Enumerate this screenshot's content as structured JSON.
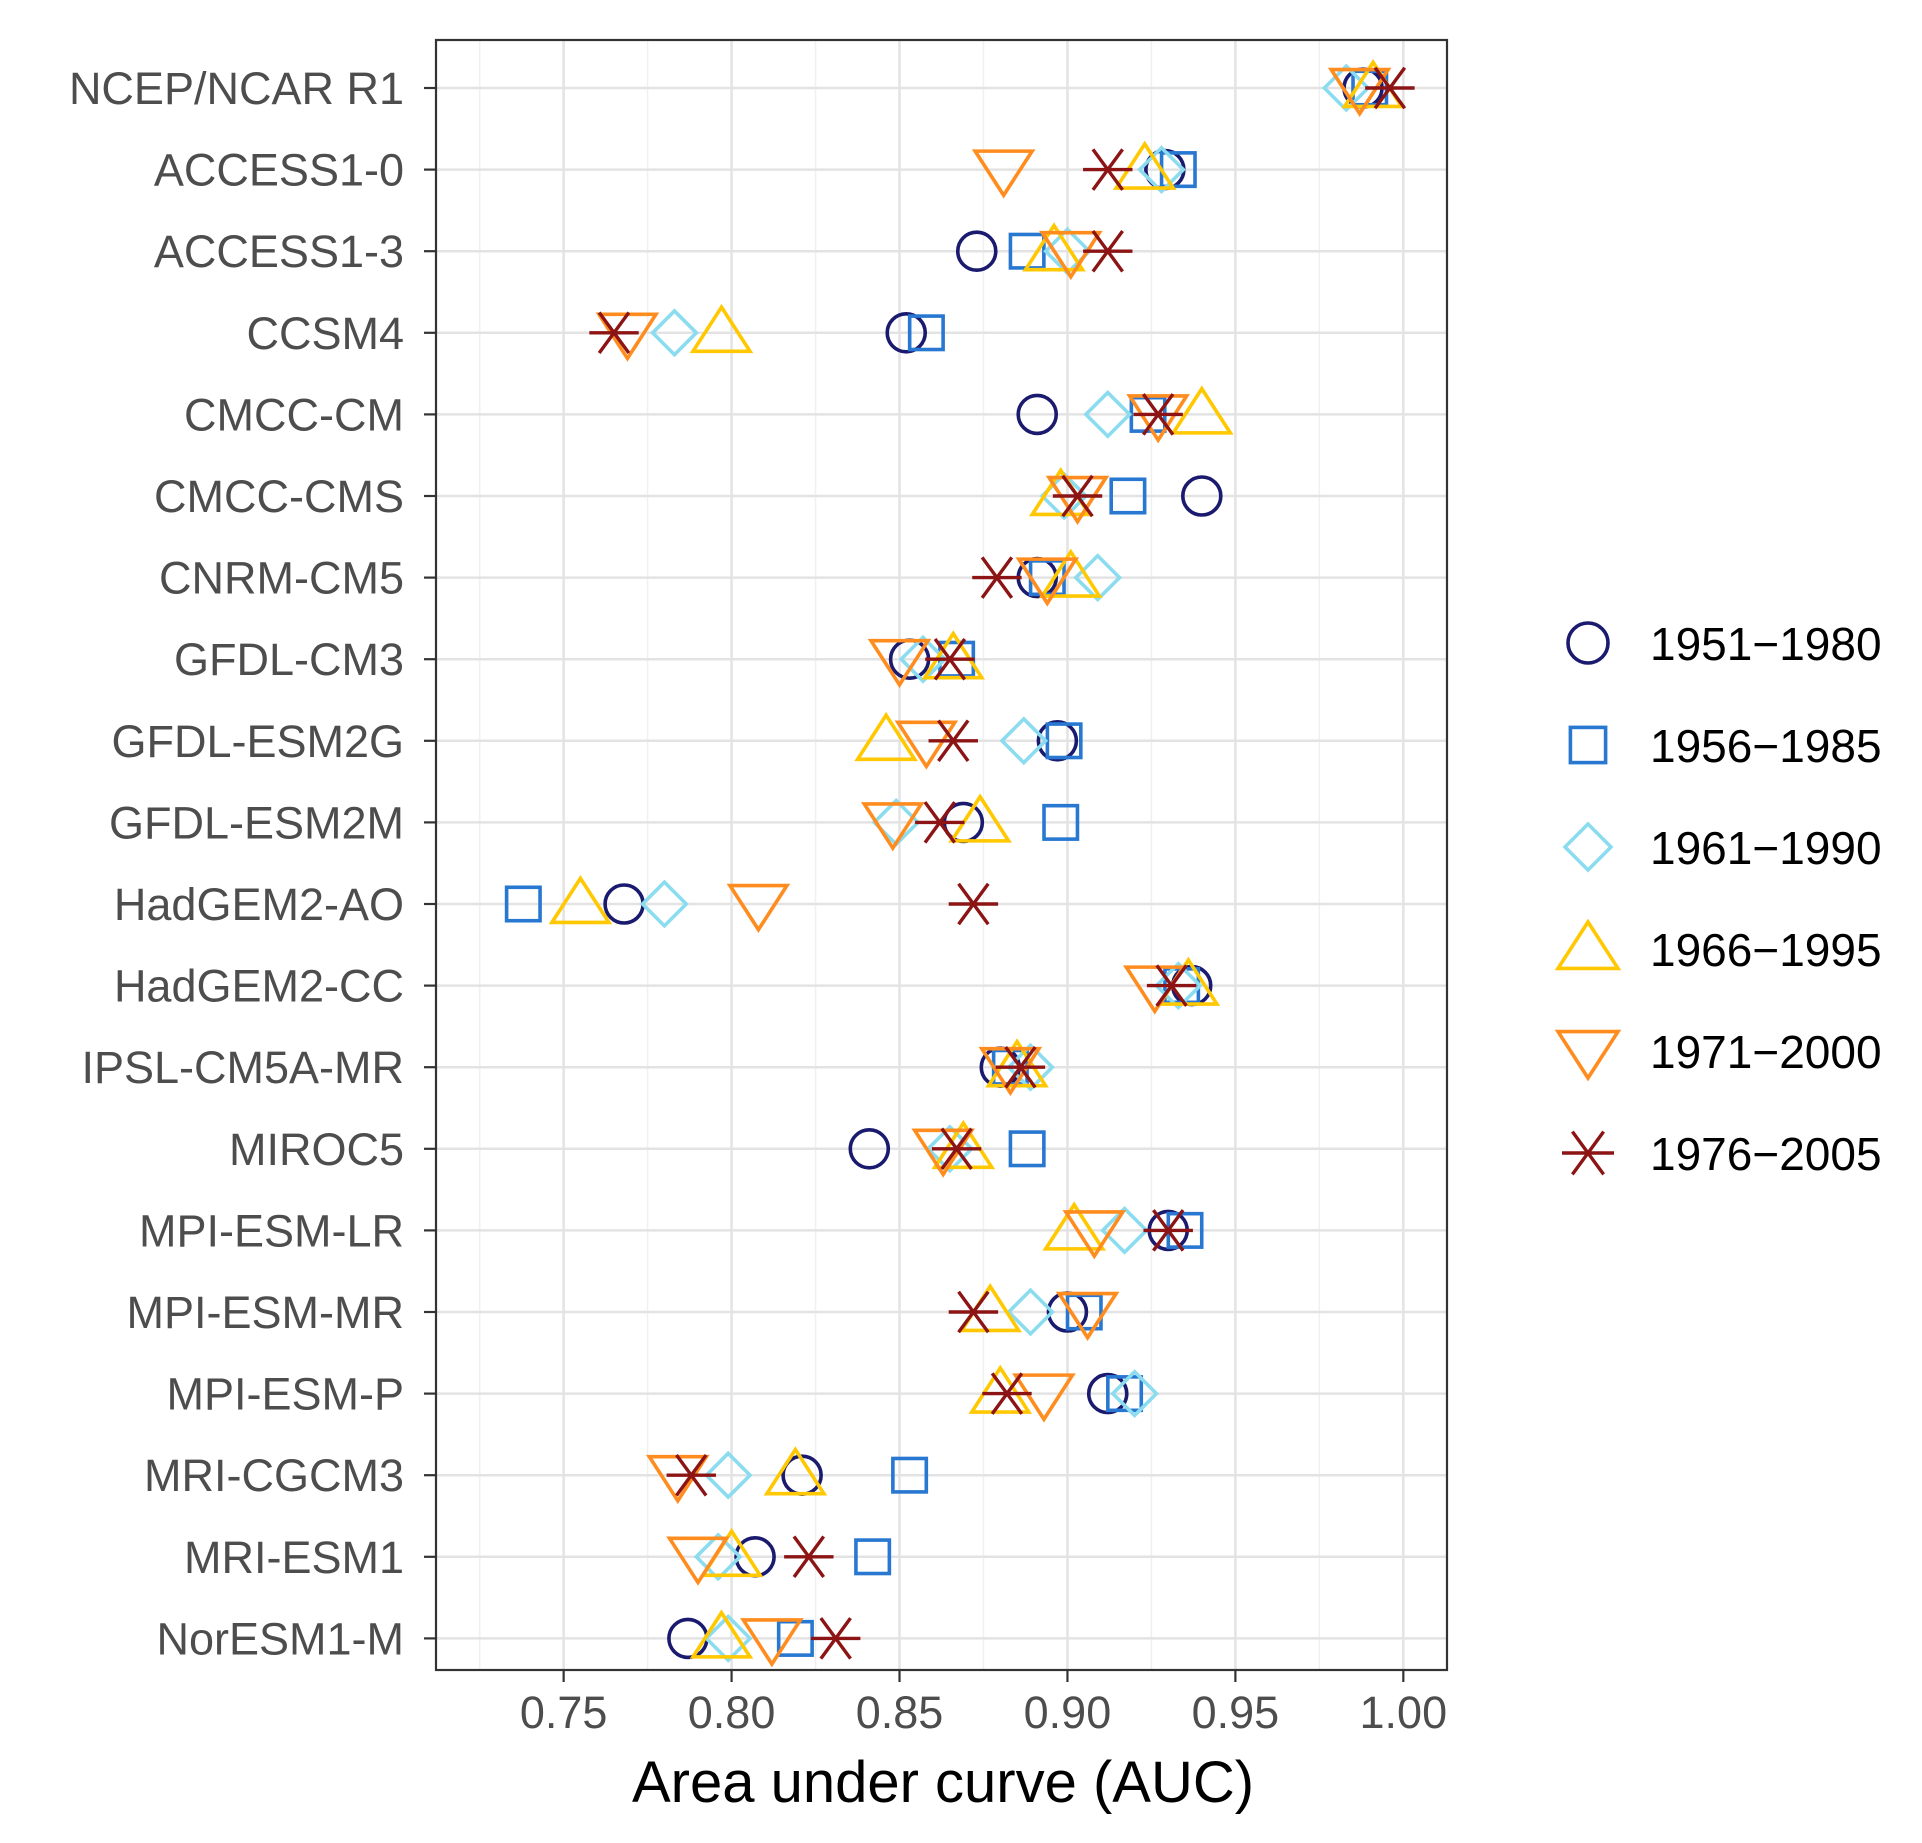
{
  "chart_data": {
    "type": "scatter",
    "title": "",
    "xlabel": "Area under curve (AUC)",
    "ylabel": "",
    "xlim": [
      0.712,
      1.013
    ],
    "x_ticks": [
      0.75,
      0.8,
      0.85,
      0.9,
      0.95,
      1.0
    ],
    "x_tick_labels": [
      "0.75",
      "0.80",
      "0.85",
      "0.90",
      "0.95",
      "1.00"
    ],
    "grid": true,
    "legend_position": "right",
    "categories": [
      "NCEP/NCAR R1",
      "ACCESS1-0",
      "ACCESS1-3",
      "CCSM4",
      "CMCC-CM",
      "CMCC-CMS",
      "CNRM-CM5",
      "GFDL-CM3",
      "GFDL-ESM2G",
      "GFDL-ESM2M",
      "HadGEM2-AO",
      "HadGEM2-CC",
      "IPSL-CM5A-MR",
      "MIROC5",
      "MPI-ESM-LR",
      "MPI-ESM-MR",
      "MPI-ESM-P",
      "MRI-CGCM3",
      "MRI-ESM1",
      "NorESM1-M"
    ],
    "series": [
      {
        "name": "1951−1980",
        "shape": "circle",
        "color": "#1a1a6e",
        "values": [
          0.988,
          0.929,
          0.873,
          0.852,
          0.891,
          0.94,
          0.891,
          0.853,
          0.897,
          0.869,
          0.768,
          0.937,
          0.88,
          0.841,
          0.93,
          0.9,
          0.912,
          0.821,
          0.807,
          0.787
        ]
      },
      {
        "name": "1956−1985",
        "shape": "square",
        "color": "#2878d2",
        "values": [
          0.99,
          0.933,
          0.888,
          0.858,
          0.924,
          0.918,
          0.894,
          0.867,
          0.899,
          0.898,
          0.738,
          0.934,
          0.883,
          0.888,
          0.935,
          0.905,
          0.917,
          0.853,
          0.842,
          0.819
        ]
      },
      {
        "name": "1961−1990",
        "shape": "diamond",
        "color": "#8cdcf0",
        "values": [
          0.983,
          0.928,
          0.9,
          0.783,
          0.912,
          0.899,
          0.909,
          0.857,
          0.887,
          0.849,
          0.78,
          0.933,
          0.889,
          0.865,
          0.917,
          0.889,
          0.92,
          0.799,
          0.796,
          0.799
        ]
      },
      {
        "name": "1966−1995",
        "shape": "triangle-up",
        "color": "#ffc800",
        "values": [
          0.991,
          0.923,
          0.896,
          0.797,
          0.94,
          0.898,
          0.901,
          0.866,
          0.846,
          0.874,
          0.755,
          0.936,
          0.885,
          0.869,
          0.902,
          0.877,
          0.88,
          0.819,
          0.8,
          0.797
        ]
      },
      {
        "name": "1971−2000",
        "shape": "triangle-down",
        "color": "#ff8c1e",
        "values": [
          0.987,
          0.881,
          0.901,
          0.769,
          0.927,
          0.903,
          0.894,
          0.85,
          0.858,
          0.848,
          0.808,
          0.926,
          0.883,
          0.863,
          0.908,
          0.906,
          0.893,
          0.784,
          0.79,
          0.812
        ]
      },
      {
        "name": "1976−2005",
        "shape": "asterisk",
        "color": "#8c1414",
        "values": [
          0.996,
          0.912,
          0.912,
          0.765,
          0.927,
          0.903,
          0.879,
          0.865,
          0.866,
          0.862,
          0.872,
          0.931,
          0.886,
          0.867,
          0.93,
          0.872,
          0.882,
          0.788,
          0.823,
          0.831
        ]
      }
    ]
  }
}
